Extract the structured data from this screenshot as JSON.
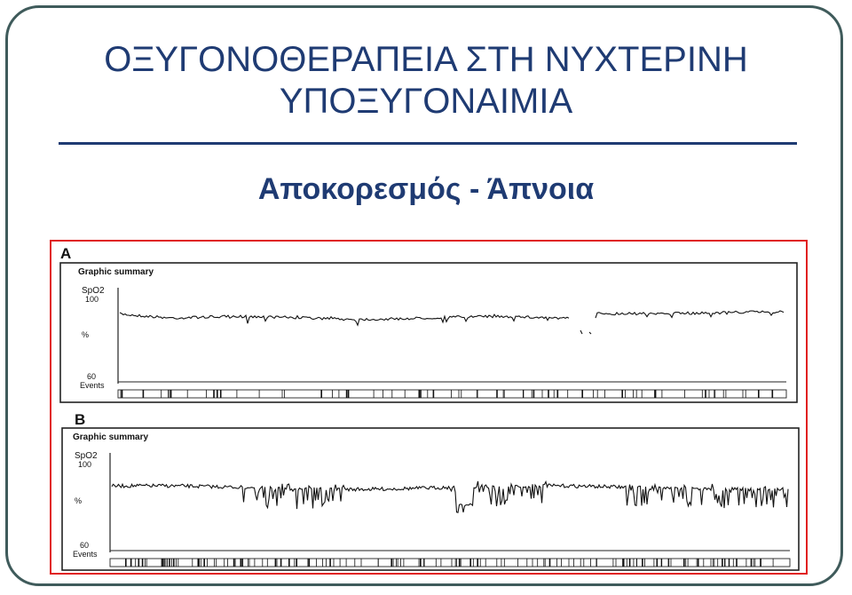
{
  "slide": {
    "title_line1": "ΟΞΥΓΟΝΟΘΕΡΑΠΕΙΑ ΣΤΗ ΝΥΧΤΕΡΙΝΗ",
    "title_line2": "ΥΠΟΞΥΓΟΝΑΙΜΙΑ",
    "subtitle": "Αποκορεσμός - Άπνοια",
    "colors": {
      "title": "#1f3b73",
      "frame": "#3f5b5b",
      "figure_border": "#e02020"
    }
  },
  "figure": {
    "panels": [
      {
        "letter": "A",
        "heading": "Graphic summary",
        "spo2_label": "SpO2",
        "y_top": "100",
        "y_unit": "%",
        "y_bottom": "60",
        "events_label": "Events"
      },
      {
        "letter": "B",
        "heading": "Graphic summary",
        "spo2_label": "SpO2",
        "y_top": "100",
        "y_unit": "%",
        "y_bottom": "60",
        "events_label": "Events"
      }
    ]
  }
}
